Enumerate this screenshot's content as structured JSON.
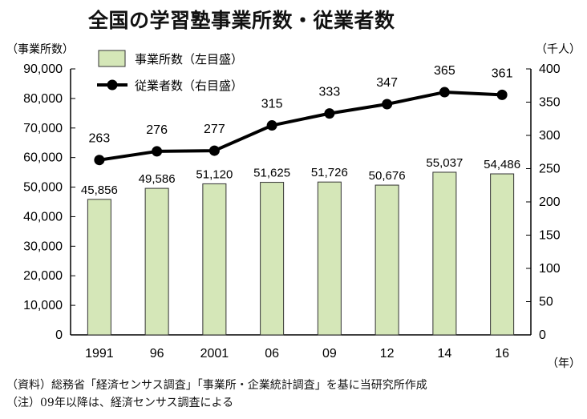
{
  "title": "全国の学習塾事業所数・従業者数",
  "notes": {
    "source": "（資料）総務省「経済センサス調査」「事業所・企業統計調査」を基に当研究所作成",
    "remark": "（注）09年以降は、経済センサス調査による"
  },
  "colors": {
    "bar_fill": "#d5e7b8",
    "bar_stroke": "#333333",
    "line": "#000000"
  },
  "chart_data": {
    "type": "bar+line",
    "title": "全国の学習塾事業所数・従業者数",
    "categories": [
      "1991",
      "96",
      "2001",
      "06",
      "09",
      "12",
      "14",
      "16"
    ],
    "x_unit": "（年）",
    "y_left": {
      "label": "（事業所数）",
      "min": 0,
      "max": 90000,
      "step": 10000,
      "ticks": [
        "0",
        "10,000",
        "20,000",
        "30,000",
        "40,000",
        "50,000",
        "60,000",
        "70,000",
        "80,000",
        "90,000"
      ]
    },
    "y_right": {
      "label": "（千人）",
      "min": 0,
      "max": 400,
      "step": 50,
      "ticks": [
        "0",
        "50",
        "100",
        "150",
        "200",
        "250",
        "300",
        "350",
        "400"
      ]
    },
    "series": [
      {
        "name": "事業所数（左目盛）",
        "type": "bar",
        "axis": "left",
        "values": [
          45856,
          49586,
          51120,
          51625,
          51726,
          50676,
          55037,
          54486
        ],
        "labels": [
          "45,856",
          "49,586",
          "51,120",
          "51,625",
          "51,726",
          "50,676",
          "55,037",
          "54,486"
        ]
      },
      {
        "name": "従業者数（右目盛）",
        "type": "line",
        "axis": "right",
        "values": [
          263,
          276,
          277,
          315,
          333,
          347,
          365,
          361
        ],
        "labels": [
          "263",
          "276",
          "277",
          "315",
          "333",
          "347",
          "365",
          "361"
        ]
      }
    ],
    "legend_position": "top-left",
    "grid": false
  }
}
